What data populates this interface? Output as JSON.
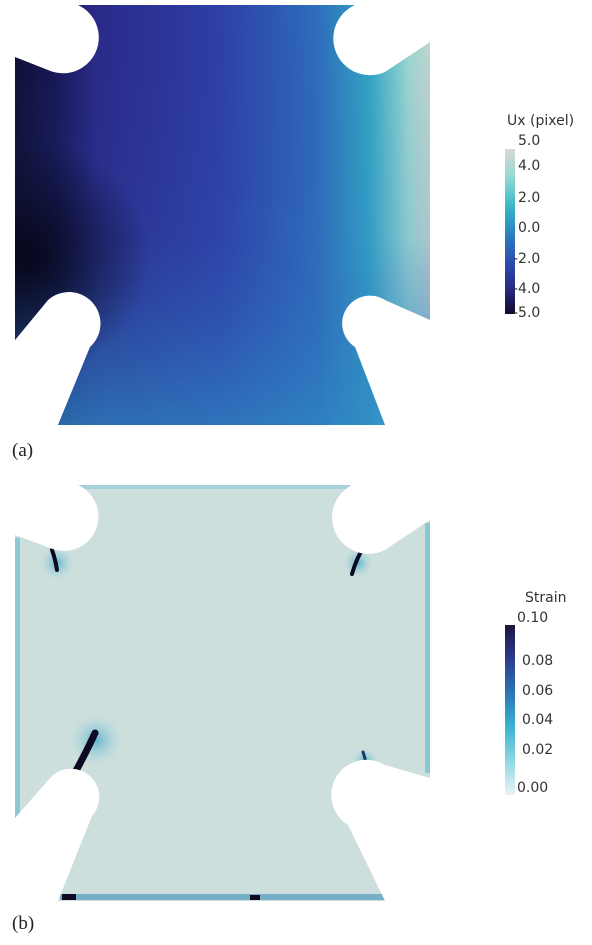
{
  "figure": {
    "panel_a": {
      "caption": "(a)",
      "colorbar": {
        "title": "Ux (pixel)",
        "ticks": [
          "5.0",
          "4.0",
          "2.0",
          "0.0",
          "-2.0",
          "-4.0",
          "-5.0"
        ],
        "colors": [
          "#0e0b2a",
          "#2b2a86",
          "#2c4fae",
          "#2b7fbf",
          "#37b7c6",
          "#8fd8d2",
          "#d9d9d4"
        ]
      }
    },
    "panel_b": {
      "caption": "(b)",
      "colorbar": {
        "title": "Strain",
        "ticks": [
          "0.10",
          "0.08",
          "0.06",
          "0.04",
          "0.02",
          "0.00"
        ],
        "colors": [
          "#1a1640",
          "#2e3b8f",
          "#2a76b6",
          "#3bb4cf",
          "#8fd7e3",
          "#e9f4f5"
        ]
      }
    }
  }
}
